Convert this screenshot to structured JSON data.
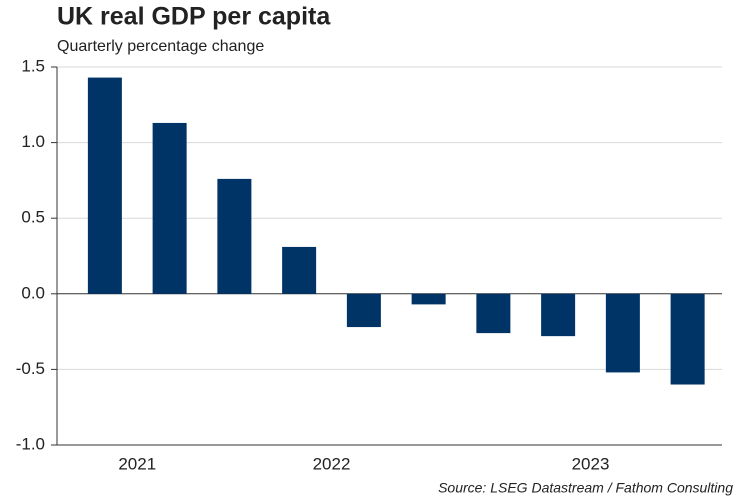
{
  "chart_data": {
    "type": "bar",
    "title": "UK real GDP per capita",
    "subtitle": "Quarterly percentage change",
    "source": "Source: LSEG Datastream / Fathom Consulting",
    "categories": [
      "2021",
      null,
      null,
      "2022",
      null,
      null,
      null,
      "2023",
      null,
      null
    ],
    "values": [
      1.43,
      1.13,
      0.76,
      0.31,
      -0.22,
      -0.07,
      -0.26,
      -0.28,
      -0.52,
      -0.6
    ],
    "color": "#003366",
    "ylim": [
      -1.0,
      1.5
    ],
    "yticks": [
      {
        "value": -1.0,
        "label": "-1.0"
      },
      -0.5,
      {
        "value": 0,
        "label": "0.0"
      },
      0.5,
      {
        "value": 1.0,
        "label": "1.0"
      },
      1.5
    ],
    "grid": true
  }
}
